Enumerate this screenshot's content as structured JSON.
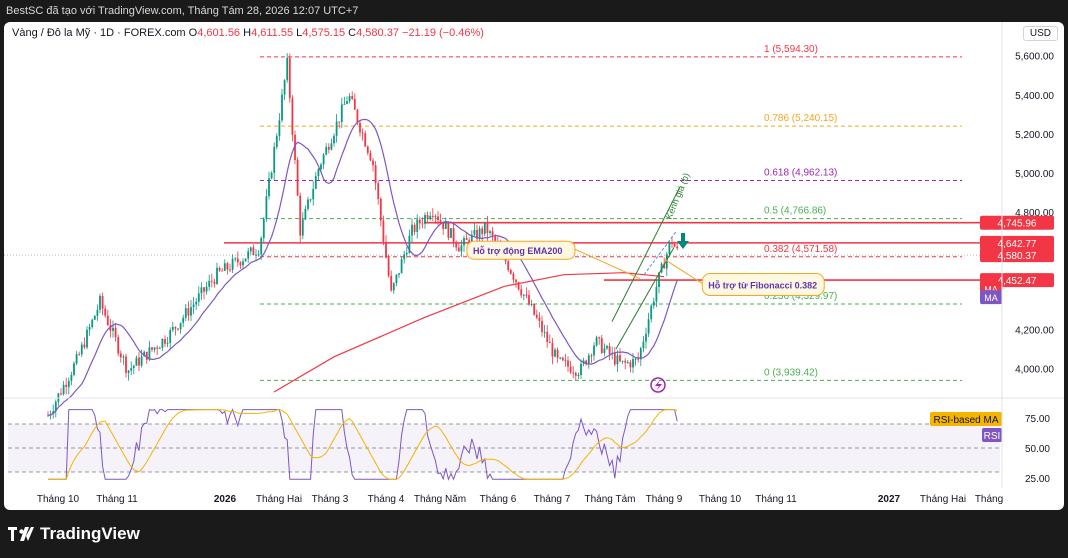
{
  "header": {
    "title": "BestSC đã tạo với TradingView.com, Tháng Tám 28, 2026 12:07 UTC+7"
  },
  "legend": {
    "symbol": "Vàng / Đô la Mỹ · 1D · FOREX.com",
    "o_label": "O",
    "o": "4,601.56",
    "h_label": "H",
    "h": "4,611.55",
    "l_label": "L",
    "l": "4,575.15",
    "c_label": "C",
    "c": "4,580.37",
    "change": "−21.19 (−0.46%)"
  },
  "currency_button": "USD",
  "footer": {
    "brand": "TradingView"
  },
  "colors": {
    "bull": "#089981",
    "bear": "#f23645",
    "ma_fast": "#7e57c2",
    "ma_slow": "#f23645",
    "fib_1": "#f23645",
    "fib_0786": "#f5a623",
    "fib_0618": "#9c27b0",
    "fib_05": "#4caf50",
    "fib_0382": "#f23645",
    "fib_0236": "#4caf50",
    "fib_0": "#4caf50",
    "rsi": "#7e57c2",
    "rsi_ma": "#f5b400"
  },
  "chart_data": {
    "type": "candlestick",
    "x_ticks": [
      "Tháng 10",
      "Tháng 11",
      "2026",
      "Tháng Hai",
      "Tháng 3",
      "Tháng 4",
      "Tháng Năm",
      "Tháng 6",
      "Tháng 7",
      "Tháng Tám",
      "Tháng 9",
      "Tháng 10",
      "Tháng 11",
      "2027",
      "Tháng Hai",
      "Tháng"
    ],
    "y_ticks": [
      "5,600.00",
      "5,400.00",
      "5,200.00",
      "5,000.00",
      "4,800.00",
      "4,200.00",
      "4,000.00"
    ],
    "ylim": [
      3880,
      5660
    ],
    "price_path": [
      {
        "date": "2025-09-22",
        "price": 3760
      },
      {
        "date": "2025-10-08",
        "price": 4050
      },
      {
        "date": "2025-10-20",
        "price": 4340
      },
      {
        "date": "2025-11-04",
        "price": 3990
      },
      {
        "date": "2025-11-26",
        "price": 4170
      },
      {
        "date": "2025-12-22",
        "price": 4480
      },
      {
        "date": "2026-01-14",
        "price": 4620
      },
      {
        "date": "2026-01-29",
        "price": 5560
      },
      {
        "date": "2026-02-05",
        "price": 4700
      },
      {
        "date": "2026-02-15",
        "price": 5030
      },
      {
        "date": "2026-03-03",
        "price": 5400
      },
      {
        "date": "2026-03-16",
        "price": 5060
      },
      {
        "date": "2026-03-26",
        "price": 4380
      },
      {
        "date": "2026-04-06",
        "price": 4700
      },
      {
        "date": "2026-04-17",
        "price": 4820
      },
      {
        "date": "2026-05-02",
        "price": 4620
      },
      {
        "date": "2026-05-16",
        "price": 4720
      },
      {
        "date": "2026-05-28",
        "price": 4530
      },
      {
        "date": "2026-06-12",
        "price": 4260
      },
      {
        "date": "2026-06-24",
        "price": 4030
      },
      {
        "date": "2026-07-06",
        "price": 3990
      },
      {
        "date": "2026-07-14",
        "price": 4140
      },
      {
        "date": "2026-07-28",
        "price": 4020
      },
      {
        "date": "2026-08-06",
        "price": 4040
      },
      {
        "date": "2026-08-16",
        "price": 4420
      },
      {
        "date": "2026-08-24",
        "price": 4660
      },
      {
        "date": "2026-08-28",
        "price": 4580
      }
    ],
    "fib_levels": [
      {
        "label": "1 (5,594.30)",
        "value": 5594.3,
        "color": "#f23645"
      },
      {
        "label": "0.786 (5,240.15)",
        "value": 5240.15,
        "color": "#f5a623"
      },
      {
        "label": "0.618 (4,962.13)",
        "value": 4962.13,
        "color": "#9c27b0"
      },
      {
        "label": "0.5 (4,766.86)",
        "value": 4766.86,
        "color": "#4caf50"
      },
      {
        "label": "0.382 (4,571.58)",
        "value": 4571.58,
        "color": "#f23645"
      },
      {
        "label": "0.236 (4,329.97)",
        "value": 4329.97,
        "color": "#4caf50"
      },
      {
        "label": "0 (3,939.42)",
        "value": 3939.42,
        "color": "#4caf50"
      }
    ],
    "h_lines": [
      4745.96,
      4642.77,
      4452.47
    ],
    "price_labels": [
      {
        "text": "4,745.96",
        "value": 4745.96,
        "bg": "#f23645"
      },
      {
        "text": "4,642.77",
        "value": 4642.77,
        "bg": "#f23645"
      },
      {
        "text": "4,580.37",
        "value": 4580.37,
        "bg": "#f23645"
      },
      {
        "text": "4,452.47",
        "value": 4452.47,
        "bg": "#f23645"
      }
    ],
    "ma_tags": [
      {
        "text": "MA",
        "value": 4410,
        "bg": "#f23645"
      },
      {
        "text": "MA",
        "value": 4365,
        "bg": "#7e57c2"
      }
    ],
    "annotations": [
      {
        "text": "Hỗ trợ động EMA200",
        "date": "2026-05-08",
        "value": 4600
      },
      {
        "text": "Hỗ trợ từ Fibonacci 0.382",
        "date": "2026-09-14",
        "value": 4425
      },
      {
        "text": "Kênh giá (b)",
        "date": "2026-08-24",
        "value": 4760
      }
    ],
    "rsi": {
      "y_ticks": [
        "75.00",
        "50.00",
        "25.00"
      ],
      "levels": [
        70,
        50,
        30
      ],
      "ylim": [
        20,
        85
      ],
      "labels": [
        "RSI-based MA",
        "RSI"
      ]
    }
  }
}
